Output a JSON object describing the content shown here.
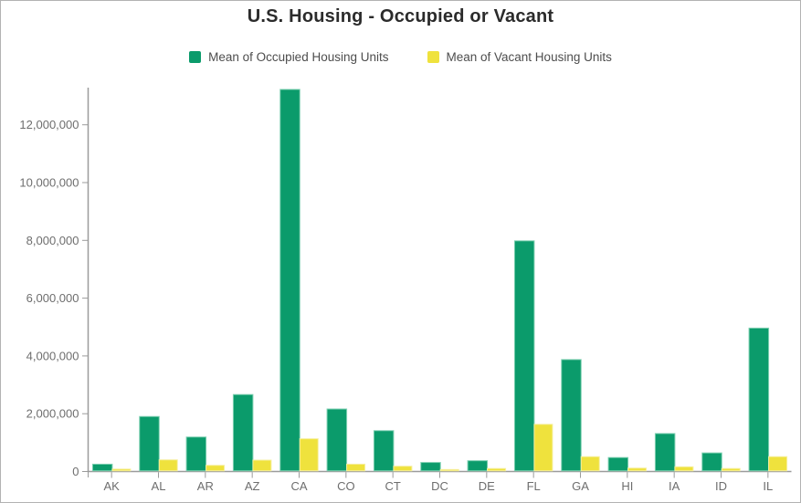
{
  "title": "U.S. Housing - Occupied or Vacant",
  "legend": [
    {
      "label": "Mean of Occupied Housing Units",
      "color": "#0b9b6b"
    },
    {
      "label": "Mean of Vacant Housing Units",
      "color": "#efe23d"
    }
  ],
  "colors": {
    "occupied_bar": "#0b9b6b",
    "occupied_bar_edge": "#7fd0b2",
    "vacant_bar": "#efe23d",
    "vacant_bar_edge": "#f6efa0",
    "axis_line": "#9b9b9b",
    "axis_text": "#6e6e6e",
    "title_text": "#2b2b2b",
    "legend_text": "#4d4d4d"
  },
  "chart_data": {
    "type": "bar",
    "title": "U.S. Housing - Occupied or Vacant",
    "xlabel": "",
    "ylabel": "",
    "categories": [
      "AK",
      "AL",
      "AR",
      "AZ",
      "CA",
      "CO",
      "CT",
      "DC",
      "DE",
      "FL",
      "GA",
      "HI",
      "IA",
      "ID",
      "IL"
    ],
    "series": [
      {
        "name": "Mean of Occupied Housing Units",
        "color": "#0b9b6b",
        "values": [
          230000,
          1880000,
          1170000,
          2640000,
          13200000,
          2140000,
          1390000,
          290000,
          350000,
          7960000,
          3850000,
          460000,
          1290000,
          620000,
          4940000
        ]
      },
      {
        "name": "Mean of Vacant Housing Units",
        "color": "#efe23d",
        "values": [
          60000,
          380000,
          190000,
          370000,
          1110000,
          230000,
          160000,
          45000,
          80000,
          1610000,
          490000,
          95000,
          140000,
          80000,
          490000
        ]
      }
    ],
    "ylim": [
      0,
      13300000
    ],
    "yticks": [
      0,
      2000000,
      4000000,
      6000000,
      8000000,
      10000000,
      12000000
    ],
    "ytick_labels": [
      "0",
      "2,000,000",
      "4,000,000",
      "6,000,000",
      "8,000,000",
      "10,000,000",
      "12,000,000"
    ],
    "grid": false,
    "legend_position": "top"
  }
}
